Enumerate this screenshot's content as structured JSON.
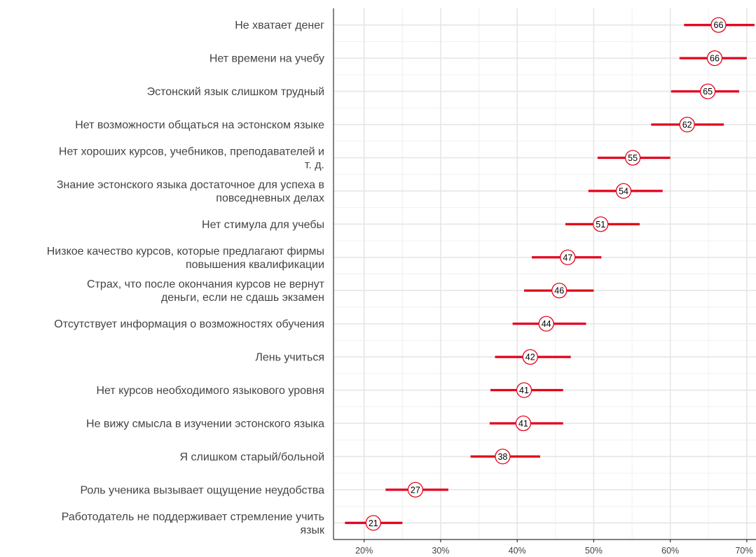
{
  "chart_data": {
    "type": "scatter",
    "categories": [
      [
        "Не хватает денег"
      ],
      [
        "Нет времени на учебу"
      ],
      [
        "Эстонский язык слишком трудный"
      ],
      [
        "Нет возможности общаться на эстонском языке"
      ],
      [
        "Нет хороших курсов, учебников, преподавателей и",
        "т. д."
      ],
      [
        "Знание эстонского языка достаточное для успеха в",
        "повседневных делах"
      ],
      [
        "Нет стимула для учебы"
      ],
      [
        "Низкое качество курсов, которые предлагают фирмы",
        "повышения квалификации"
      ],
      [
        "Страх, что после окончания курсов не вернут",
        "деньги, если не сдашь экзамен"
      ],
      [
        "Отсутствует информация о возможностях обучения"
      ],
      [
        "Лень учиться"
      ],
      [
        "Нет курсов необходимого языкового уровня"
      ],
      [
        "Не вижу смысла в изучении эстонского языка"
      ],
      [
        "Я слишком старый/больной"
      ],
      [
        "Роль ученика вызывает ощущение неудобства"
      ],
      [
        "Работодатель не поддерживает стремление учить",
        "язык"
      ]
    ],
    "estimates": [
      66.3,
      65.8,
      64.9,
      62.2,
      55.1,
      53.9,
      50.9,
      46.6,
      45.5,
      43.8,
      41.7,
      40.9,
      40.8,
      38.1,
      26.7,
      21.2
    ],
    "labels": [
      "66",
      "66",
      "65",
      "62",
      "55",
      "54",
      "51",
      "47",
      "46",
      "44",
      "42",
      "41",
      "41",
      "38",
      "27",
      "21"
    ],
    "ci_low": [
      61.8,
      61.2,
      60.1,
      57.5,
      50.5,
      49.3,
      46.3,
      41.9,
      40.9,
      39.4,
      37.1,
      36.5,
      36.4,
      33.9,
      22.8,
      17.5
    ],
    "ci_high": [
      71,
      70,
      69,
      67,
      60,
      59,
      56,
      51,
      50,
      49,
      47,
      46,
      46,
      43,
      31,
      25
    ],
    "xlim": [
      16,
      71.2
    ],
    "xticks": [
      20,
      30,
      40,
      50,
      60,
      70
    ],
    "xtick_labels": [
      "20%",
      "30%",
      "40%",
      "50%",
      "60%",
      "70%"
    ],
    "grid": true,
    "colors": {
      "interval": "#e3001b",
      "marker_edge": "#e3001b",
      "marker_fill": "#ffffff",
      "grid": "#e6e6e6",
      "axis": "#333333"
    }
  }
}
